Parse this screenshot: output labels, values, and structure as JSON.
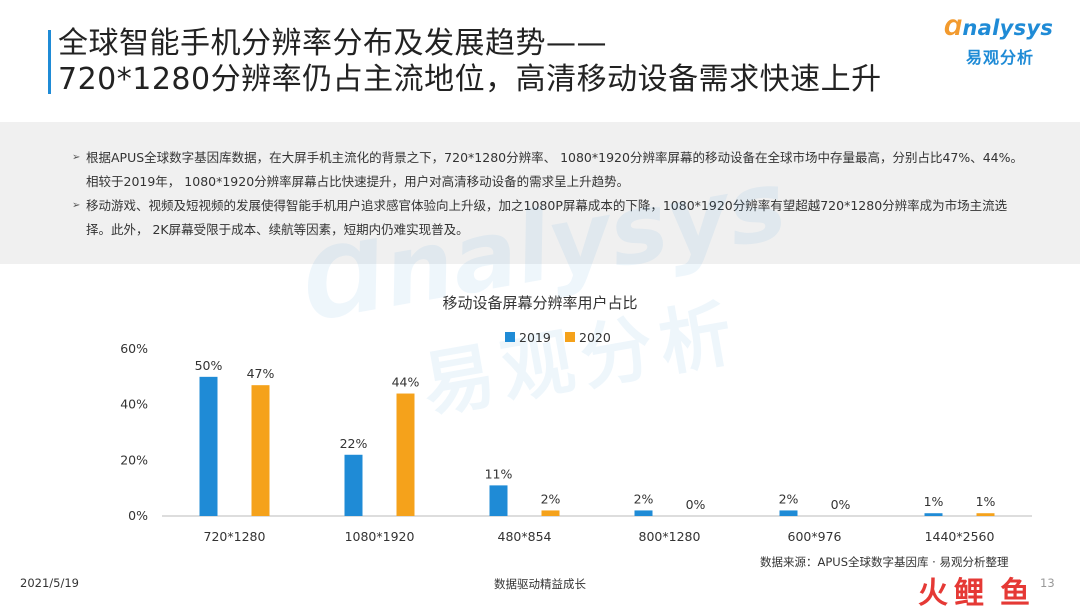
{
  "header": {
    "title_line1": "全球智能手机分辨率分布及发展趋势——",
    "title_line2": "720*1280分辨率仍占主流地位，高清移动设备需求快速上升"
  },
  "logo": {
    "en_prefix": "Ɑ",
    "en_rest": "nalysys",
    "cn": "易观分析"
  },
  "bullets": [
    "根据APUS全球数字基因库数据，在大屏手机主流化的背景之下，720*1280分辨率、 1080*1920分辨率屏幕的移动设备在全球市场中存量最高，分别占比47%、44%。相较于2019年， 1080*1920分辨率屏幕占比快速提升，用户对高清移动设备的需求呈上升趋势。",
    "移动游戏、视频及短视频的发展使得智能手机用户追求感官体验向上升级，加之1080P屏幕成本的下降，1080*1920分辨率有望超越720*1280分辨率成为市场主流选择。此外， 2K屏幕受限于成本、续航等因素，短期内仍难实现普及。"
  ],
  "bullet_marker": "➢",
  "chart_data": {
    "type": "bar",
    "title": "移动设备屏幕分辨率用户占比",
    "categories": [
      "720*1280",
      "1080*1920",
      "480*854",
      "800*1280",
      "600*976",
      "1440*2560"
    ],
    "series": [
      {
        "name": "2019",
        "values": [
          50,
          22,
          11,
          2,
          2,
          1
        ],
        "labels": [
          "50%",
          "22%",
          "11%",
          "2%",
          "2%",
          "1%"
        ],
        "color": "#1f8bd6"
      },
      {
        "name": "2020",
        "values": [
          47,
          44,
          2,
          0,
          0,
          1
        ],
        "labels": [
          "47%",
          "44%",
          "2%",
          "0%",
          "0%",
          "1%"
        ],
        "color": "#f5a21b"
      }
    ],
    "ylim": [
      0,
      60
    ],
    "yticks": [
      0,
      20,
      40,
      60
    ],
    "ytick_labels": [
      "0%",
      "20%",
      "40%",
      "60%"
    ],
    "legend_position": "top-center",
    "grid": false
  },
  "source": "数据来源：APUS全球数字基因库 · 易观分析整理",
  "footer": {
    "date": "2021/5/19",
    "center": "数据驱动精益成长",
    "page": "13"
  },
  "corner_logo": [
    "火",
    "鲤",
    "鱼"
  ]
}
